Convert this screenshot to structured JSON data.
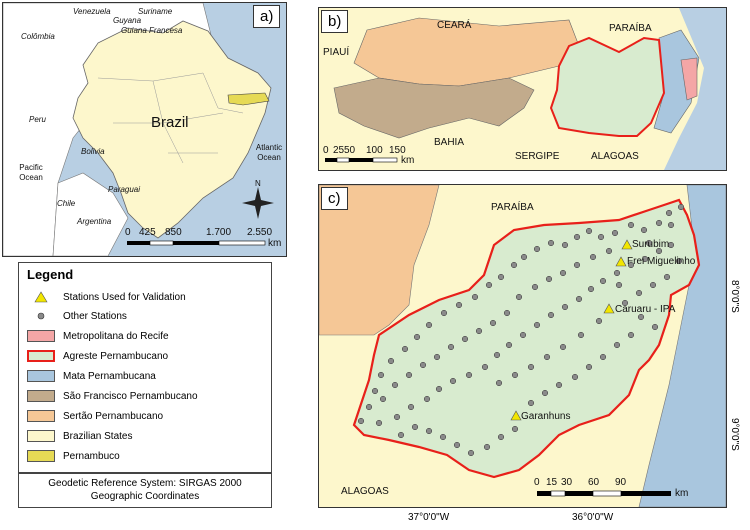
{
  "panels": {
    "a": {
      "letter": "a)",
      "country_label": "Brazil",
      "labels": [
        "Venezuela",
        "Guyana",
        "Suriname",
        "Guiana Francesa",
        "Colômbia",
        "Peru",
        "Bolivia",
        "Paraguai",
        "Chile",
        "Argentina",
        "Atlantic Ocean",
        "Pacific Ocean"
      ],
      "scale": {
        "ticks": [
          "0",
          "425",
          "850",
          "1.700",
          "2.550"
        ],
        "unit": "km"
      },
      "north": "N"
    },
    "b": {
      "letter": "b)",
      "labels": [
        "CEARÁ",
        "PARAÍBA",
        "PIAUÍ",
        "BAHIA",
        "SERGIPE",
        "ALAGOAS"
      ],
      "scale": {
        "ticks": [
          "0",
          "25",
          "50",
          "100",
          "150"
        ],
        "unit": "km"
      }
    },
    "c": {
      "letter": "c)",
      "labels": [
        "PARAÍBA",
        "ALAGOAS"
      ],
      "validation_stations": [
        "Surubim",
        "Frei Miguelinho",
        "Caruaru - IPA",
        "Garanhuns"
      ],
      "scale": {
        "ticks": [
          "0",
          "15",
          "30",
          "60",
          "90"
        ],
        "unit": "km"
      },
      "x_axis_labels": [
        "37°0'0\"W",
        "36°0'0\"W"
      ],
      "y_axis_labels": [
        "8°0'0\"S",
        "9°0'0\"S"
      ]
    }
  },
  "legend": {
    "title": "Legend",
    "items": [
      {
        "label": "Stations Used for Validation",
        "kind": "triangle",
        "color": "#f2e600"
      },
      {
        "label": "Other Stations",
        "kind": "dot",
        "color": "#8a8a8a"
      },
      {
        "label": "Metropolitana do Recife",
        "kind": "fill",
        "color": "#f4a6a6"
      },
      {
        "label": "Agreste Pernambucano",
        "kind": "outline",
        "color": "#e8201a"
      },
      {
        "label": "Mata Pernambucana",
        "kind": "fill",
        "color": "#a9c6de"
      },
      {
        "label": "São Francisco Pernambucano",
        "kind": "fill",
        "color": "#c2ab8c"
      },
      {
        "label": "Sertão Pernambucano",
        "kind": "fill",
        "color": "#f5c796"
      },
      {
        "label": "Brazilian States",
        "kind": "fill",
        "color": "#fdf7cc"
      },
      {
        "label": "Pernambuco",
        "kind": "fill",
        "color": "#e6da55"
      }
    ]
  },
  "georef": {
    "line1": "Geodetic Reference System: SIRGAS 2000",
    "line2": "Geographic Coordinates"
  }
}
